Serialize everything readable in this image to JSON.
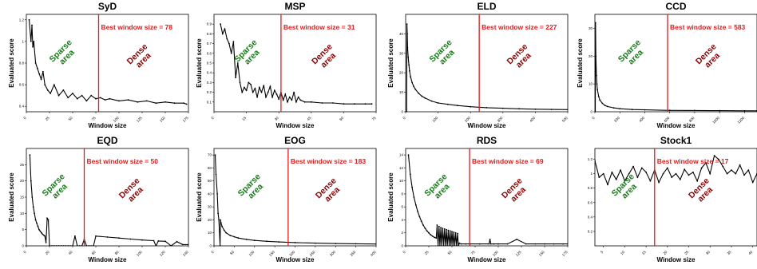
{
  "chart_data": [
    {
      "type": "line",
      "title": "SyD",
      "xlabel": "Window size",
      "ylabel": "Evaluated score",
      "xlim": [
        0,
        175
      ],
      "ylim": [
        0.35,
        1.25
      ],
      "xticks": [
        "0",
        "25",
        "50",
        "75",
        "100",
        "125",
        "150",
        "175"
      ],
      "yticks": [
        "0.4",
        "0.6",
        "0.8",
        "1",
        "1.2"
      ],
      "best_window": 78,
      "best_label": "Best window size = 78",
      "sparse_label": "Sparse\narea",
      "dense_label": "Dense\narea",
      "series": [
        {
          "x": [
            3,
            5,
            6,
            7,
            8,
            10,
            12,
            14,
            16,
            18,
            20,
            23,
            26,
            30,
            35,
            40,
            45,
            50,
            55,
            60,
            65,
            70,
            75,
            80,
            85,
            90,
            100,
            110,
            120,
            130,
            140,
            150,
            160,
            170,
            173
          ],
          "y": [
            1.2,
            1.0,
            1.15,
            0.95,
            1.0,
            0.8,
            0.75,
            0.7,
            0.65,
            0.72,
            0.6,
            0.55,
            0.52,
            0.6,
            0.5,
            0.55,
            0.48,
            0.52,
            0.47,
            0.5,
            0.45,
            0.5,
            0.47,
            0.48,
            0.46,
            0.47,
            0.45,
            0.46,
            0.44,
            0.45,
            0.43,
            0.44,
            0.43,
            0.43,
            0.42
          ]
        }
      ]
    },
    {
      "type": "line",
      "title": "MSP",
      "xlabel": "Window size",
      "ylabel": "Evaluated score",
      "xlim": [
        0,
        75
      ],
      "ylim": [
        0.0,
        1.0
      ],
      "xticks": [
        "0",
        "15",
        "30",
        "45",
        "60",
        "75"
      ],
      "yticks": [
        "0.1",
        "0.2",
        "0.3",
        "0.4",
        "0.5",
        "0.6",
        "0.7",
        "0.8",
        "0.9"
      ],
      "best_window": 31,
      "best_label": "Best window size = 31",
      "sparse_label": "Sparse\narea",
      "dense_label": "Dense\narea",
      "series": [
        {
          "x": [
            3,
            4,
            5,
            6,
            7,
            8,
            9,
            10,
            11,
            12,
            13,
            14,
            15,
            16,
            17,
            18,
            19,
            20,
            21,
            22,
            23,
            24,
            25,
            26,
            27,
            28,
            29,
            30,
            31,
            32,
            33,
            34,
            35,
            36,
            37,
            38,
            39,
            40,
            42,
            45,
            50,
            55,
            60,
            65,
            70,
            73
          ],
          "y": [
            0.9,
            0.8,
            0.85,
            0.75,
            0.7,
            0.6,
            0.72,
            0.35,
            0.5,
            0.3,
            0.2,
            0.25,
            0.22,
            0.3,
            0.28,
            0.2,
            0.24,
            0.15,
            0.25,
            0.2,
            0.27,
            0.15,
            0.2,
            0.26,
            0.15,
            0.22,
            0.18,
            0.13,
            0.2,
            0.12,
            0.18,
            0.1,
            0.15,
            0.12,
            0.2,
            0.1,
            0.15,
            0.12,
            0.1,
            0.1,
            0.09,
            0.09,
            0.08,
            0.08,
            0.08,
            0.08
          ]
        }
      ]
    },
    {
      "type": "line",
      "title": "ELD",
      "xlabel": "Window size",
      "ylabel": "Evaluated score",
      "xlim": [
        0,
        500
      ],
      "ylim": [
        0,
        50
      ],
      "xticks": [
        "0",
        "100",
        "200",
        "300",
        "400",
        "500"
      ],
      "yticks": [
        "0",
        "10",
        "20",
        "30",
        "40"
      ],
      "best_window": 227,
      "best_label": "Best window size = 227",
      "sparse_label": "Sparse\narea",
      "dense_label": "Dense\narea",
      "series": [
        {
          "x": [
            3,
            4,
            5,
            6,
            8,
            10,
            12,
            15,
            20,
            25,
            30,
            40,
            50,
            60,
            80,
            100,
            130,
            160,
            200,
            250,
            300,
            350,
            400,
            450,
            500
          ],
          "y": [
            0,
            45,
            40,
            33,
            28,
            24,
            21,
            18,
            15,
            13,
            11.5,
            9.5,
            8,
            7,
            5.5,
            4.5,
            3.8,
            3.2,
            2.6,
            2.1,
            1.8,
            1.5,
            1.3,
            1.2,
            1.1
          ]
        }
      ]
    },
    {
      "type": "line",
      "title": "CCD",
      "xlabel": "Window size",
      "ylabel": "Evaluated score",
      "xlim": [
        0,
        1300
      ],
      "ylim": [
        0,
        35
      ],
      "xticks": [
        "0",
        "200",
        "400",
        "600",
        "800",
        "1000",
        "1200"
      ],
      "yticks": [
        "0",
        "10",
        "20",
        "30"
      ],
      "best_window": 583,
      "best_label": "Best window size = 583",
      "sparse_label": "Sparse\narea",
      "dense_label": "Dense\narea",
      "series": [
        {
          "x": [
            3,
            5,
            8,
            12,
            16,
            20,
            30,
            40,
            60,
            80,
            100,
            150,
            200,
            300,
            400,
            600,
            800,
            1000,
            1200,
            1300
          ],
          "y": [
            0,
            32,
            20,
            13,
            10,
            8,
            5.5,
            4.2,
            3,
            2.3,
            1.9,
            1.4,
            1.1,
            0.8,
            0.7,
            0.5,
            0.45,
            0.4,
            0.35,
            0.35
          ]
        }
      ]
    },
    {
      "type": "line",
      "title": "EQD",
      "xlabel": "Window size",
      "ylabel": "Evaluated score",
      "xlim": [
        0,
        140
      ],
      "ylim": [
        0,
        30
      ],
      "xticks": [
        "0",
        "20",
        "40",
        "60",
        "80",
        "100",
        "120",
        "140"
      ],
      "yticks": [
        "0",
        "5",
        "10",
        "15",
        "20",
        "25"
      ],
      "best_window": 50,
      "best_label": "Best window size = 50",
      "sparse_label": "Sparse\narea",
      "dense_label": "Dense\narea",
      "series": [
        {
          "x": [
            3,
            4,
            5,
            6,
            7,
            8,
            9,
            10,
            11,
            12,
            13,
            14,
            15,
            16,
            17,
            18,
            19,
            20,
            22,
            24,
            26,
            28,
            30,
            32,
            34,
            36,
            38,
            40,
            42,
            44,
            46,
            48,
            50,
            52,
            54,
            56,
            58,
            60,
            70,
            80,
            90,
            100,
            110,
            112,
            114,
            120,
            125,
            130,
            135,
            140
          ],
          "y": [
            28,
            20,
            15,
            12,
            10,
            8,
            7,
            6,
            5,
            4.5,
            4,
            3.6,
            3.3,
            3,
            1,
            8.5,
            8,
            0,
            0,
            0,
            0,
            0,
            0,
            0,
            0,
            0,
            0,
            0,
            3,
            0,
            0,
            0,
            2,
            0,
            0,
            0,
            0,
            3,
            2.7,
            2.4,
            2.1,
            1.8,
            1.6,
            0,
            1.5,
            1.4,
            0,
            1.3,
            0.4,
            0.4
          ]
        }
      ]
    },
    {
      "type": "line",
      "title": "EOG",
      "xlabel": "Window size",
      "ylabel": "Evaluated score",
      "xlim": [
        0,
        400
      ],
      "ylim": [
        0,
        75
      ],
      "xticks": [
        "0",
        "50",
        "100",
        "150",
        "200",
        "250",
        "300",
        "350",
        "400"
      ],
      "yticks": [
        "0",
        "10",
        "20",
        "30",
        "40",
        "50",
        "60",
        "70"
      ],
      "best_window": 183,
      "best_label": "Best window size = 183",
      "sparse_label": "Sparse\narea",
      "dense_label": "Dense\narea",
      "series": [
        {
          "x": [
            3,
            5,
            8,
            10,
            12,
            15,
            16,
            17,
            20,
            25,
            30,
            40,
            50,
            60,
            80,
            100,
            130,
            160,
            200,
            250,
            300,
            350,
            400
          ],
          "y": [
            70,
            55,
            40,
            25,
            20,
            0,
            20,
            18,
            15,
            12,
            10,
            8,
            7,
            6,
            5,
            4.2,
            3.5,
            3,
            2.5,
            2.1,
            1.8,
            1.6,
            1.4
          ]
        }
      ]
    },
    {
      "type": "line",
      "title": "RDS",
      "xlabel": "Window size",
      "ylabel": "Evaluated score",
      "xlim": [
        0,
        175
      ],
      "ylim": [
        0,
        15
      ],
      "xticks": [
        "0",
        "25",
        "50",
        "75",
        "100",
        "125",
        "150",
        "175"
      ],
      "yticks": [
        "0",
        "2",
        "4",
        "6",
        "8",
        "10",
        "12",
        "14"
      ],
      "best_window": 69,
      "best_label": "Best window size = 69",
      "sparse_label": "Sparse\narea",
      "dense_label": "Dense\narea",
      "series": [
        {
          "x": [
            3,
            5,
            7,
            9,
            11,
            13,
            15,
            17,
            19,
            21,
            23,
            25,
            27,
            29,
            31,
            33,
            34,
            35,
            36,
            37,
            38,
            39,
            40,
            41,
            42,
            43,
            44,
            45,
            46,
            47,
            48,
            49,
            50,
            51,
            52,
            53,
            54,
            55,
            56,
            57,
            58,
            60,
            65,
            70,
            80,
            90,
            91,
            92,
            95,
            100,
            110,
            120,
            130,
            140,
            150,
            160,
            170,
            175
          ],
          "y": [
            14,
            11,
            9,
            7.5,
            6.3,
            5.3,
            4.5,
            3.8,
            3.2,
            2.7,
            2.3,
            2,
            1.7,
            1.5,
            1.3,
            1.2,
            3.2,
            0,
            3,
            0,
            2.8,
            0,
            2.7,
            0,
            2.6,
            0,
            2.5,
            0,
            2.4,
            0,
            2.3,
            0,
            2.2,
            0,
            2.1,
            0,
            2,
            0,
            1.9,
            0,
            0.4,
            0.3,
            0.3,
            0.3,
            0.3,
            0.3,
            1,
            0.3,
            0.3,
            0.3,
            0.3,
            1,
            0.3,
            0.3,
            0.3,
            0.3,
            0.3,
            0.3
          ]
        }
      ]
    },
    {
      "type": "line",
      "title": "Stock1",
      "xlabel": "Window size",
      "ylabel": "",
      "xlim": [
        3,
        41
      ],
      "ylim": [
        0.0,
        1.35
      ],
      "xticks": [
        "5",
        "10",
        "15",
        "20",
        "25",
        "30",
        "35",
        "40"
      ],
      "yticks": [
        "0.2",
        "0.4",
        "0.6",
        "0.8",
        "1",
        "1.2"
      ],
      "best_window": 17,
      "best_label": "Best window size = 17",
      "sparse_label": "Sparse\narea",
      "dense_label": "Dense\narea",
      "series": [
        {
          "x": [
            3,
            4,
            5,
            6,
            7,
            8,
            9,
            10,
            11,
            12,
            13,
            14,
            15,
            16,
            17,
            18,
            19,
            20,
            21,
            22,
            23,
            24,
            25,
            26,
            27,
            28,
            29,
            30,
            31,
            32,
            33,
            34,
            35,
            36,
            37,
            38,
            39,
            40,
            41
          ],
          "y": [
            1.18,
            0.95,
            1.0,
            0.85,
            1.02,
            0.92,
            1.05,
            0.9,
            1.0,
            1.1,
            0.95,
            1.08,
            1.02,
            0.9,
            1.05,
            0.88,
            1.0,
            1.08,
            0.95,
            1.0,
            0.92,
            1.06,
            0.98,
            1.02,
            0.9,
            1.08,
            1.15,
            1.0,
            1.25,
            1.2,
            1.1,
            1.0,
            1.05,
            1.0,
            1.12,
            0.98,
            1.05,
            0.88,
            1.0
          ]
        }
      ]
    }
  ]
}
